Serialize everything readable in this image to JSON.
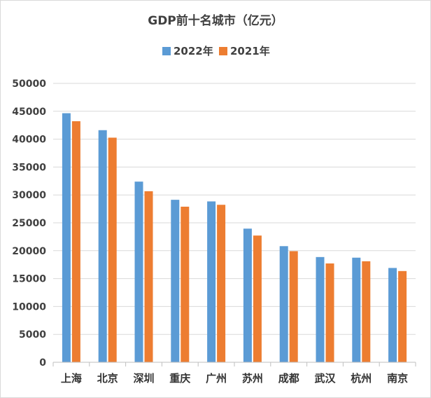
{
  "chart_data": {
    "type": "bar",
    "title": "GDP前十名城市（亿元）",
    "categories": [
      "上海",
      "北京",
      "深圳",
      "重庆",
      "广州",
      "苏州",
      "成都",
      "武汉",
      "杭州",
      "南京"
    ],
    "series": [
      {
        "name": "2022年",
        "color": "#5b9bd5",
        "values": [
          44653,
          41611,
          32388,
          29129,
          28839,
          23958,
          20818,
          18866,
          18753,
          16907
        ]
      },
      {
        "name": "2021年",
        "color": "#ed7d31",
        "values": [
          43215,
          40270,
          30665,
          27894,
          28232,
          22718,
          19917,
          17717,
          18109,
          16355
        ]
      }
    ],
    "ylim": [
      0,
      50000
    ],
    "yticks": [
      0,
      5000,
      10000,
      15000,
      20000,
      25000,
      30000,
      35000,
      40000,
      45000,
      50000
    ],
    "grid": true,
    "legend": "top"
  }
}
